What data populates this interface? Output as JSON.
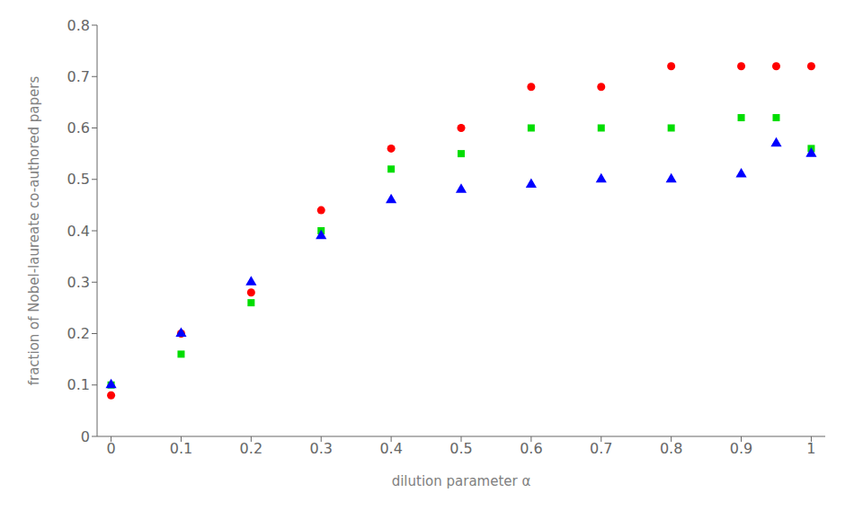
{
  "chart_data": {
    "type": "scatter",
    "x": [
      0,
      0.1,
      0.2,
      0.3,
      0.4,
      0.5,
      0.6,
      0.7,
      0.8,
      0.9,
      0.95,
      1.0
    ],
    "xlabel": "dilution parameter α",
    "ylabel": "fraction of Nobel-laureate co-authored papers",
    "xlim": [
      -0.02,
      1.02
    ],
    "ylim": [
      0,
      0.8
    ],
    "xticks": [
      0,
      0.1,
      0.2,
      0.3,
      0.4,
      0.5,
      0.6,
      0.7,
      0.8,
      0.9,
      1
    ],
    "yticks": [
      0,
      0.1,
      0.2,
      0.3,
      0.4,
      0.5,
      0.6,
      0.7,
      0.8
    ],
    "grid": false,
    "series": [
      {
        "color": "#ff0000",
        "marker": "circle",
        "values": [
          0.08,
          0.2,
          0.28,
          0.44,
          0.56,
          0.6,
          0.68,
          0.68,
          0.72,
          0.72,
          0.72,
          0.72
        ]
      },
      {
        "color": "#00dd00",
        "marker": "square",
        "values": [
          0.1,
          0.16,
          0.26,
          0.4,
          0.52,
          0.55,
          0.6,
          0.6,
          0.6,
          0.62,
          0.62,
          0.56
        ]
      },
      {
        "color": "#0000ff",
        "marker": "triangle",
        "values": [
          0.1,
          0.2,
          0.3,
          0.39,
          0.46,
          0.48,
          0.49,
          0.5,
          0.5,
          0.51,
          0.57,
          0.55
        ]
      }
    ]
  }
}
